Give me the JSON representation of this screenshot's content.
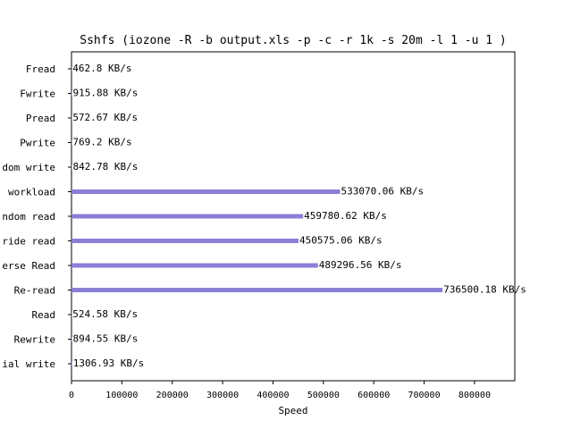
{
  "chart_data": {
    "type": "bar",
    "orientation": "horizontal",
    "title": "Sshfs (iozone -R -b output.xls -p -c -r 1k -s 20m -l 1 -u 1 )",
    "xlabel": "Speed",
    "ylabel": "",
    "xlim": [
      0,
      880000
    ],
    "xticks": [
      0,
      100000,
      200000,
      300000,
      400000,
      500000,
      600000,
      700000,
      800000
    ],
    "xtick_labels": [
      "0",
      "100000",
      "200000",
      "300000",
      "400000",
      "500000",
      "600000",
      "700000",
      "800000"
    ],
    "grid": false,
    "legend": "none",
    "bar_color": "#8a7fd6",
    "categories": [
      "Fread",
      "Fwrite",
      "Pread",
      "Pwrite",
      "dom write",
      "workload",
      "ndom read",
      "ride read",
      "erse Read",
      "Re-read",
      "Read",
      "Rewrite",
      "ial write"
    ],
    "values": [
      462.8,
      915.88,
      572.67,
      769.2,
      842.78,
      533070.06,
      459780.62,
      450575.06,
      489296.56,
      736500.18,
      524.58,
      894.55,
      1306.93
    ],
    "value_labels": [
      "462.8 KB/s",
      "915.88 KB/s",
      "572.67 KB/s",
      "769.2 KB/s",
      "842.78 KB/s",
      "533070.06 KB/s",
      "459780.62 KB/s",
      "450575.06 KB/s",
      "489296.56 KB/s",
      "736500.18 KB/s",
      "524.58 KB/s",
      "894.55 KB/s",
      "1306.93 KB/s"
    ]
  }
}
